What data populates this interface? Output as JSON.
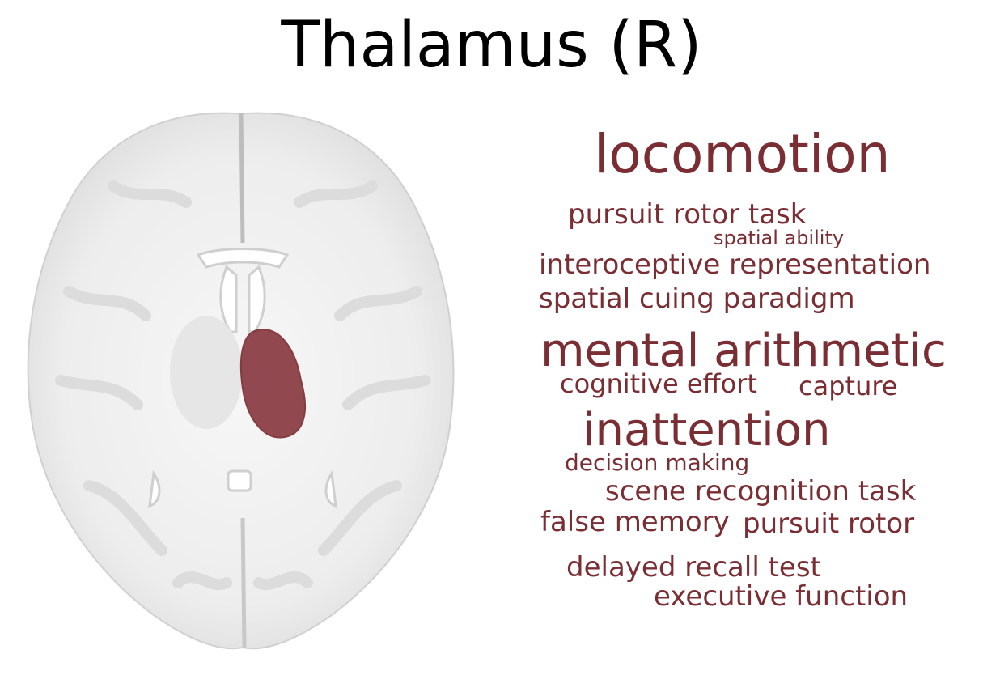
{
  "title": "Thalamus (R)",
  "colors": {
    "accent": "#7a2e34",
    "region_fill": "#8a3a42",
    "brain_tissue": "#efefef"
  },
  "brain_image": {
    "view": "axial",
    "highlighted_region": "right thalamus"
  },
  "word_cloud": [
    {
      "text": "locomotion",
      "weight": 1.0
    },
    {
      "text": "pursuit rotor task",
      "weight": 0.5
    },
    {
      "text": "spatial ability",
      "weight": 0.32
    },
    {
      "text": "interoceptive representation",
      "weight": 0.5
    },
    {
      "text": "spatial cuing paradigm",
      "weight": 0.5
    },
    {
      "text": "mental arithmetic",
      "weight": 0.86
    },
    {
      "text": "cognitive effort",
      "weight": 0.46
    },
    {
      "text": "capture",
      "weight": 0.46
    },
    {
      "text": "inattention",
      "weight": 0.86
    },
    {
      "text": "decision making",
      "weight": 0.4
    },
    {
      "text": "scene recognition task",
      "weight": 0.48
    },
    {
      "text": "false memory",
      "weight": 0.48
    },
    {
      "text": "pursuit rotor",
      "weight": 0.48
    },
    {
      "text": "delayed recall test",
      "weight": 0.48
    },
    {
      "text": "executive function",
      "weight": 0.48
    }
  ]
}
